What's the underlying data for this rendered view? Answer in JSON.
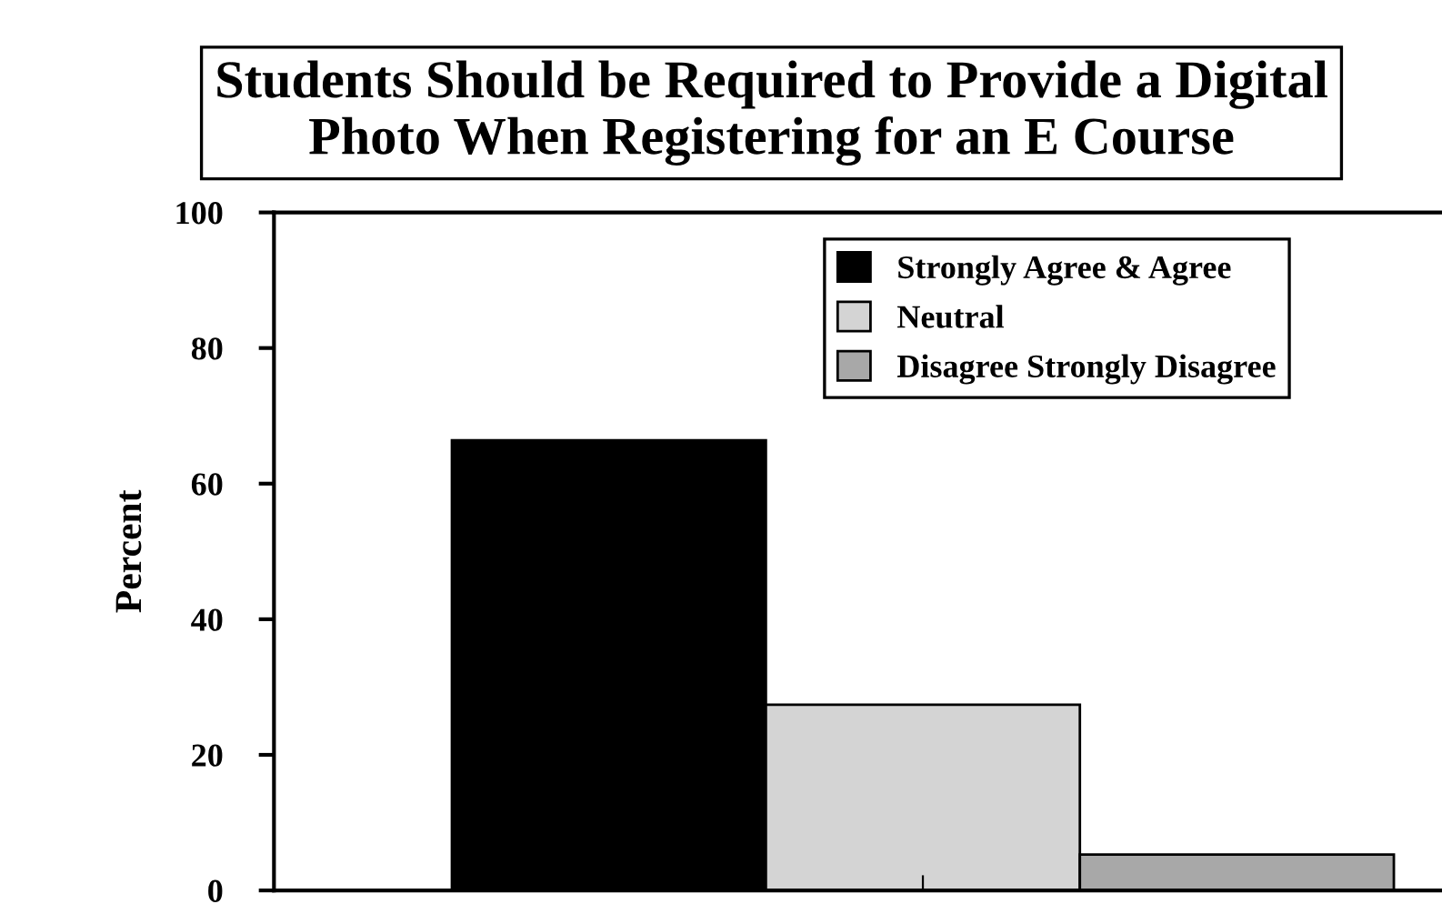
{
  "chart_data": {
    "type": "bar",
    "title": "Students Should be Required to Provide a Digital\nPhoto When Registering for an E Course",
    "ylabel": "Percent",
    "categories": [
      null
    ],
    "series": [
      {
        "name": "Strongly Agree & Agree",
        "color": "#000000",
        "values": [
          66.4
        ]
      },
      {
        "name": "Neutral",
        "color": "#d4d4d4",
        "values": [
          27.4
        ]
      },
      {
        "name": "Disagree Strongly Disagree",
        "color": "#a8a8a8",
        "values": [
          5.3
        ]
      }
    ],
    "ylim": [
      0,
      100
    ],
    "yticks": [
      0,
      20,
      40,
      60,
      80,
      100
    ],
    "grid": false,
    "legend": "top right"
  }
}
